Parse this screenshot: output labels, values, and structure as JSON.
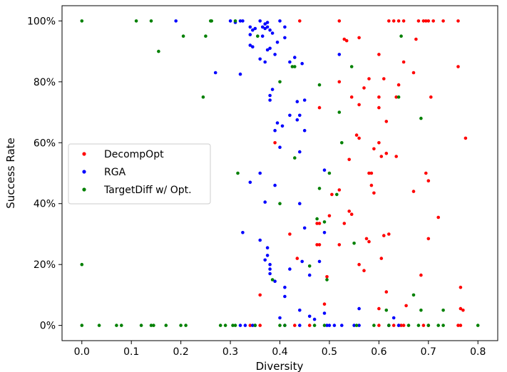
{
  "chart_data": {
    "type": "scatter",
    "xlabel": "Diversity",
    "ylabel": "Success Rate",
    "xlim": [
      -0.04,
      0.84
    ],
    "ylim": [
      -5,
      105
    ],
    "xticks": [
      "0.0",
      "0.1",
      "0.2",
      "0.3",
      "0.4",
      "0.5",
      "0.6",
      "0.7",
      "0.8"
    ],
    "yticks": [
      "0%",
      "20%",
      "40%",
      "60%",
      "80%",
      "100%"
    ],
    "grid": false,
    "legend": {
      "placement": "center-left"
    },
    "series": [
      {
        "name": "DecompOpt",
        "color": "#ff0000",
        "points": [
          [
            0.44,
            100
          ],
          [
            0.52,
            100
          ],
          [
            0.62,
            100
          ],
          [
            0.63,
            100
          ],
          [
            0.64,
            100
          ],
          [
            0.65,
            100
          ],
          [
            0.68,
            100
          ],
          [
            0.69,
            100
          ],
          [
            0.695,
            100
          ],
          [
            0.7,
            100
          ],
          [
            0.71,
            100
          ],
          [
            0.73,
            100
          ],
          [
            0.76,
            100
          ],
          [
            0.675,
            94
          ],
          [
            0.53,
            94
          ],
          [
            0.535,
            93.5
          ],
          [
            0.56,
            94.5
          ],
          [
            0.6,
            89
          ],
          [
            0.65,
            86.5
          ],
          [
            0.76,
            85
          ],
          [
            0.67,
            83
          ],
          [
            0.61,
            81
          ],
          [
            0.58,
            81
          ],
          [
            0.52,
            80
          ],
          [
            0.57,
            78
          ],
          [
            0.64,
            79
          ],
          [
            0.545,
            75
          ],
          [
            0.6,
            75
          ],
          [
            0.635,
            75
          ],
          [
            0.705,
            75
          ],
          [
            0.56,
            72.5
          ],
          [
            0.48,
            71.5
          ],
          [
            0.6,
            71.5
          ],
          [
            0.615,
            67
          ],
          [
            0.775,
            61.5
          ],
          [
            0.39,
            60
          ],
          [
            0.6,
            60
          ],
          [
            0.59,
            58
          ],
          [
            0.555,
            62.5
          ],
          [
            0.56,
            61.5
          ],
          [
            0.54,
            54.5
          ],
          [
            0.605,
            55.5
          ],
          [
            0.615,
            56.5
          ],
          [
            0.635,
            55.5
          ],
          [
            0.58,
            50
          ],
          [
            0.585,
            50
          ],
          [
            0.695,
            50
          ],
          [
            0.7,
            47.5
          ],
          [
            0.585,
            46
          ],
          [
            0.505,
            43
          ],
          [
            0.52,
            44.5
          ],
          [
            0.59,
            43.5
          ],
          [
            0.67,
            44
          ],
          [
            0.72,
            35.5
          ],
          [
            0.54,
            37.5
          ],
          [
            0.545,
            36.5
          ],
          [
            0.5,
            36
          ],
          [
            0.475,
            33.5
          ],
          [
            0.48,
            33.5
          ],
          [
            0.53,
            33.5
          ],
          [
            0.42,
            30
          ],
          [
            0.62,
            30
          ],
          [
            0.61,
            29.5
          ],
          [
            0.575,
            28.5
          ],
          [
            0.58,
            27.5
          ],
          [
            0.7,
            28.5
          ],
          [
            0.475,
            26.5
          ],
          [
            0.48,
            26.5
          ],
          [
            0.52,
            26.5
          ],
          [
            0.605,
            22
          ],
          [
            0.435,
            22
          ],
          [
            0.56,
            20
          ],
          [
            0.57,
            18
          ],
          [
            0.495,
            16
          ],
          [
            0.685,
            16.5
          ],
          [
            0.765,
            12.5
          ],
          [
            0.36,
            10
          ],
          [
            0.615,
            11
          ],
          [
            0.49,
            7
          ],
          [
            0.655,
            6.5
          ],
          [
            0.6,
            5.5
          ],
          [
            0.765,
            5.5
          ],
          [
            0.77,
            5
          ],
          [
            0.43,
            0
          ],
          [
            0.46,
            0
          ],
          [
            0.6,
            0
          ],
          [
            0.62,
            0
          ],
          [
            0.63,
            0
          ],
          [
            0.64,
            0
          ],
          [
            0.645,
            0
          ],
          [
            0.65,
            0
          ],
          [
            0.69,
            0
          ],
          [
            0.7,
            0
          ],
          [
            0.76,
            0
          ],
          [
            0.765,
            0
          ],
          [
            0.36,
            0
          ],
          [
            0.34,
            0
          ]
        ]
      },
      {
        "name": "RGA",
        "color": "#0000ff",
        "points": [
          [
            0.19,
            100
          ],
          [
            0.3,
            100
          ],
          [
            0.32,
            100
          ],
          [
            0.325,
            100
          ],
          [
            0.36,
            100
          ],
          [
            0.37,
            99
          ],
          [
            0.375,
            99.5
          ],
          [
            0.4,
            100
          ],
          [
            0.31,
            99.5
          ],
          [
            0.34,
            98
          ],
          [
            0.345,
            97
          ],
          [
            0.35,
            97.5
          ],
          [
            0.365,
            98
          ],
          [
            0.37,
            97.5
          ],
          [
            0.375,
            98
          ],
          [
            0.38,
            97
          ],
          [
            0.41,
            98
          ],
          [
            0.385,
            96
          ],
          [
            0.34,
            95.5
          ],
          [
            0.365,
            95
          ],
          [
            0.41,
            94.5
          ],
          [
            0.395,
            93
          ],
          [
            0.34,
            92
          ],
          [
            0.345,
            91.5
          ],
          [
            0.375,
            90.5
          ],
          [
            0.38,
            91
          ],
          [
            0.39,
            89
          ],
          [
            0.52,
            89
          ],
          [
            0.43,
            88
          ],
          [
            0.36,
            87.5
          ],
          [
            0.37,
            86.5
          ],
          [
            0.445,
            86
          ],
          [
            0.42,
            86.5
          ],
          [
            0.27,
            83
          ],
          [
            0.32,
            82.5
          ],
          [
            0.385,
            77.5
          ],
          [
            0.38,
            75.5
          ],
          [
            0.38,
            74
          ],
          [
            0.435,
            73.5
          ],
          [
            0.45,
            74
          ],
          [
            0.42,
            69
          ],
          [
            0.44,
            69
          ],
          [
            0.435,
            67.5
          ],
          [
            0.395,
            66.5
          ],
          [
            0.405,
            65.5
          ],
          [
            0.39,
            64
          ],
          [
            0.45,
            64
          ],
          [
            0.4,
            58.5
          ],
          [
            0.44,
            57
          ],
          [
            0.49,
            51
          ],
          [
            0.36,
            50
          ],
          [
            0.34,
            47
          ],
          [
            0.39,
            46
          ],
          [
            0.44,
            40
          ],
          [
            0.37,
            40.5
          ],
          [
            0.45,
            32
          ],
          [
            0.325,
            30.5
          ],
          [
            0.49,
            30.5
          ],
          [
            0.36,
            28
          ],
          [
            0.375,
            25.5
          ],
          [
            0.375,
            23
          ],
          [
            0.37,
            21.5
          ],
          [
            0.38,
            20
          ],
          [
            0.445,
            21
          ],
          [
            0.48,
            21
          ],
          [
            0.38,
            18.5
          ],
          [
            0.42,
            18.5
          ],
          [
            0.38,
            17
          ],
          [
            0.46,
            16.5
          ],
          [
            0.39,
            14.5
          ],
          [
            0.41,
            12.5
          ],
          [
            0.41,
            9.5
          ],
          [
            0.44,
            5
          ],
          [
            0.49,
            4
          ],
          [
            0.46,
            3
          ],
          [
            0.4,
            2.5
          ],
          [
            0.47,
            2
          ],
          [
            0.56,
            5.5
          ],
          [
            0.63,
            2.5
          ],
          [
            0.32,
            0
          ],
          [
            0.33,
            0
          ],
          [
            0.345,
            0
          ],
          [
            0.35,
            0
          ],
          [
            0.41,
            0
          ],
          [
            0.44,
            0
          ],
          [
            0.495,
            0
          ],
          [
            0.5,
            0
          ],
          [
            0.51,
            0
          ],
          [
            0.525,
            0
          ],
          [
            0.55,
            0
          ],
          [
            0.56,
            0
          ],
          [
            0.62,
            0
          ],
          [
            0.64,
            0
          ]
        ]
      },
      {
        "name": "TargetDiff w/ Opt.",
        "color": "#008000",
        "points": [
          [
            0.0,
            100
          ],
          [
            0.11,
            100
          ],
          [
            0.14,
            100
          ],
          [
            0.26,
            100
          ],
          [
            0.262,
            100
          ],
          [
            0.31,
            100
          ],
          [
            0.205,
            95
          ],
          [
            0.25,
            95
          ],
          [
            0.355,
            95
          ],
          [
            0.645,
            95
          ],
          [
            0.155,
            90
          ],
          [
            0.43,
            85
          ],
          [
            0.425,
            85
          ],
          [
            0.545,
            85
          ],
          [
            0.4,
            80
          ],
          [
            0.48,
            79
          ],
          [
            0.245,
            75
          ],
          [
            0.64,
            75
          ],
          [
            0.52,
            70
          ],
          [
            0.685,
            68
          ],
          [
            0.525,
            60
          ],
          [
            0.43,
            55
          ],
          [
            0.315,
            50
          ],
          [
            0.5,
            50
          ],
          [
            0.515,
            43
          ],
          [
            0.48,
            45
          ],
          [
            0.4,
            40
          ],
          [
            0.475,
            35
          ],
          [
            0.49,
            34
          ],
          [
            0.55,
            27
          ],
          [
            0.46,
            19.5
          ],
          [
            0.0,
            20
          ],
          [
            0.495,
            15
          ],
          [
            0.385,
            15
          ],
          [
            0.67,
            10
          ],
          [
            0.615,
            5
          ],
          [
            0.685,
            5
          ],
          [
            0.73,
            5
          ],
          [
            0.0,
            0
          ],
          [
            0.035,
            0
          ],
          [
            0.07,
            0
          ],
          [
            0.08,
            0
          ],
          [
            0.12,
            0
          ],
          [
            0.14,
            0
          ],
          [
            0.145,
            0
          ],
          [
            0.17,
            0
          ],
          [
            0.2,
            0
          ],
          [
            0.21,
            0
          ],
          [
            0.28,
            0
          ],
          [
            0.29,
            0
          ],
          [
            0.305,
            0
          ],
          [
            0.31,
            0
          ],
          [
            0.35,
            0
          ],
          [
            0.4,
            0
          ],
          [
            0.41,
            0
          ],
          [
            0.47,
            0
          ],
          [
            0.49,
            0
          ],
          [
            0.555,
            0
          ],
          [
            0.59,
            0
          ],
          [
            0.62,
            0
          ],
          [
            0.66,
            0
          ],
          [
            0.68,
            0
          ],
          [
            0.7,
            0
          ],
          [
            0.72,
            0
          ],
          [
            0.73,
            0
          ],
          [
            0.8,
            0
          ]
        ]
      }
    ]
  }
}
